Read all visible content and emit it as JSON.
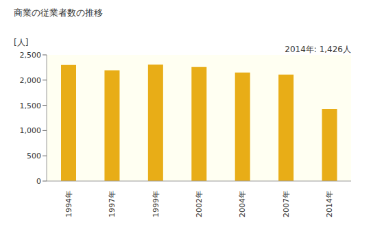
{
  "chart_data": {
    "type": "bar",
    "title": "商業の従業者数の推移",
    "y_label": "[人]",
    "annotation": "2014年: 1,426人",
    "categories": [
      "1994年",
      "1997年",
      "1999年",
      "2002年",
      "2004年",
      "2007年",
      "2014年"
    ],
    "values": [
      2300,
      2195,
      2305,
      2260,
      2150,
      2110,
      1426
    ],
    "color": "#e8ad17",
    "ylim": [
      0,
      2500
    ],
    "yticks": [
      0,
      500,
      {
        "value": 1000,
        "label": "1,000"
      },
      {
        "value": 1500,
        "label": "1,500"
      },
      {
        "value": 2000,
        "label": "2,000"
      },
      {
        "value": 2500,
        "label": "2,500"
      }
    ],
    "grid": false
  }
}
